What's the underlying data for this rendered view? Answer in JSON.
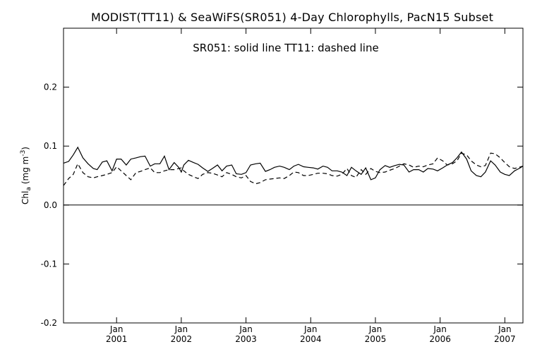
{
  "chart_data": {
    "type": "line",
    "title": "MODIST(TT11) & SeaWiFS(SR051) 4-Day Chlorophylls, PacN15 Subset",
    "legend_text": "SR051: solid line    TT11: dashed line",
    "ylabel": "Chl",
    "ylabel_sub": "a",
    "ylabel_units": "(mg m",
    "ylabel_sup": "-3",
    "ylabel_close": ")",
    "ylim": [
      -0.2,
      0.3
    ],
    "xlim": [
      2000.18,
      2007.28
    ],
    "y_ticks": [
      {
        "value": -0.2,
        "label": "-0.2"
      },
      {
        "value": -0.1,
        "label": "-0.1"
      },
      {
        "value": 0.0,
        "label": "0.0"
      },
      {
        "value": 0.1,
        "label": "0.1"
      },
      {
        "value": 0.2,
        "label": "0.2"
      }
    ],
    "x_ticks": [
      {
        "value": 2001.0,
        "month": "Jan",
        "year": "2001"
      },
      {
        "value": 2002.0,
        "month": "Jan",
        "year": "2002"
      },
      {
        "value": 2003.0,
        "month": "Jan",
        "year": "2003"
      },
      {
        "value": 2004.0,
        "month": "Jan",
        "year": "2004"
      },
      {
        "value": 2005.0,
        "month": "Jan",
        "year": "2005"
      },
      {
        "value": 2006.0,
        "month": "Jan",
        "year": "2006"
      },
      {
        "value": 2007.0,
        "month": "Jan",
        "year": "2007"
      }
    ],
    "zero_line": true,
    "grid": false,
    "series": [
      {
        "style": "solid",
        "color": "#000000",
        "x": [
          2000.18,
          2000.26,
          2000.33,
          2000.4,
          2000.48,
          2000.56,
          2000.64,
          2000.7,
          2000.78,
          2000.85,
          2000.93,
          2001.0,
          2001.07,
          2001.15,
          2001.22,
          2001.3,
          2001.37,
          2001.44,
          2001.52,
          2001.59,
          2001.67,
          2001.74,
          2001.81,
          2001.89,
          2001.96,
          2002.0,
          2002.04,
          2002.11,
          2002.19,
          2002.26,
          2002.33,
          2002.41,
          2002.48,
          2002.56,
          2002.63,
          2002.7,
          2002.78,
          2002.85,
          2002.93,
          2003.0,
          2003.07,
          2003.15,
          2003.22,
          2003.3,
          2003.37,
          2003.44,
          2003.52,
          2003.59,
          2003.67,
          2003.74,
          2003.81,
          2003.89,
          2003.96,
          2004.04,
          2004.11,
          2004.19,
          2004.26,
          2004.33,
          2004.41,
          2004.48,
          2004.56,
          2004.63,
          2004.7,
          2004.78,
          2004.85,
          2004.93,
          2005.0,
          2005.07,
          2005.15,
          2005.22,
          2005.3,
          2005.37,
          2005.44,
          2005.52,
          2005.59,
          2005.67,
          2005.74,
          2005.81,
          2005.89,
          2005.96,
          2006.04,
          2006.11,
          2006.19,
          2006.26,
          2006.33,
          2006.41,
          2006.48,
          2006.56,
          2006.63,
          2006.7,
          2006.78,
          2006.85,
          2006.93,
          2007.0,
          2007.07,
          2007.15,
          2007.22,
          2007.28
        ],
        "values": [
          0.071,
          0.074,
          0.085,
          0.098,
          0.08,
          0.07,
          0.062,
          0.06,
          0.073,
          0.075,
          0.058,
          0.078,
          0.078,
          0.068,
          0.078,
          0.08,
          0.082,
          0.083,
          0.066,
          0.07,
          0.07,
          0.083,
          0.06,
          0.072,
          0.064,
          0.056,
          0.068,
          0.076,
          0.072,
          0.069,
          0.063,
          0.057,
          0.062,
          0.068,
          0.058,
          0.066,
          0.068,
          0.053,
          0.052,
          0.055,
          0.068,
          0.07,
          0.071,
          0.057,
          0.06,
          0.064,
          0.066,
          0.064,
          0.06,
          0.066,
          0.069,
          0.065,
          0.064,
          0.063,
          0.061,
          0.066,
          0.064,
          0.058,
          0.058,
          0.056,
          0.05,
          0.064,
          0.058,
          0.052,
          0.063,
          0.043,
          0.046,
          0.06,
          0.067,
          0.064,
          0.067,
          0.069,
          0.068,
          0.056,
          0.06,
          0.06,
          0.056,
          0.062,
          0.061,
          0.058,
          0.063,
          0.068,
          0.072,
          0.08,
          0.09,
          0.078,
          0.058,
          0.05,
          0.048,
          0.056,
          0.075,
          0.068,
          0.056,
          0.052,
          0.05,
          0.058,
          0.062,
          0.066
        ]
      },
      {
        "style": "dashed",
        "color": "#000000",
        "x": [
          2000.18,
          2000.26,
          2000.33,
          2000.4,
          2000.48,
          2000.56,
          2000.64,
          2000.7,
          2000.78,
          2000.85,
          2000.93,
          2001.0,
          2001.07,
          2001.15,
          2001.22,
          2001.3,
          2001.37,
          2001.44,
          2001.52,
          2001.59,
          2001.67,
          2001.74,
          2001.81,
          2001.89,
          2001.96,
          2002.0,
          2002.04,
          2002.11,
          2002.19,
          2002.26,
          2002.33,
          2002.41,
          2002.48,
          2002.56,
          2002.63,
          2002.7,
          2002.78,
          2002.85,
          2002.93,
          2003.0,
          2003.07,
          2003.15,
          2003.22,
          2003.3,
          2003.37,
          2003.44,
          2003.52,
          2003.59,
          2003.67,
          2003.74,
          2003.81,
          2003.89,
          2003.96,
          2004.04,
          2004.11,
          2004.19,
          2004.26,
          2004.33,
          2004.41,
          2004.48,
          2004.56,
          2004.63,
          2004.7,
          2004.78,
          2004.85,
          2004.93,
          2005.0,
          2005.07,
          2005.15,
          2005.22,
          2005.3,
          2005.37,
          2005.44,
          2005.52,
          2005.59,
          2005.67,
          2005.74,
          2005.81,
          2005.89,
          2005.96,
          2006.04,
          2006.11,
          2006.19,
          2006.26,
          2006.33,
          2006.41,
          2006.48,
          2006.56,
          2006.63,
          2006.7,
          2006.78,
          2006.85,
          2006.93,
          2007.0,
          2007.07,
          2007.15,
          2007.22,
          2007.28
        ],
        "values": [
          0.033,
          0.045,
          0.052,
          0.07,
          0.055,
          0.048,
          0.046,
          0.048,
          0.05,
          0.052,
          0.055,
          0.065,
          0.058,
          0.05,
          0.043,
          0.055,
          0.057,
          0.06,
          0.063,
          0.055,
          0.055,
          0.058,
          0.06,
          0.06,
          0.062,
          0.063,
          0.058,
          0.052,
          0.048,
          0.045,
          0.052,
          0.055,
          0.054,
          0.051,
          0.048,
          0.055,
          0.052,
          0.048,
          0.046,
          0.05,
          0.04,
          0.036,
          0.038,
          0.043,
          0.044,
          0.045,
          0.046,
          0.045,
          0.05,
          0.056,
          0.055,
          0.05,
          0.05,
          0.052,
          0.054,
          0.054,
          0.053,
          0.05,
          0.049,
          0.052,
          0.062,
          0.05,
          0.047,
          0.06,
          0.052,
          0.062,
          0.057,
          0.055,
          0.056,
          0.059,
          0.062,
          0.066,
          0.07,
          0.068,
          0.064,
          0.066,
          0.065,
          0.068,
          0.07,
          0.08,
          0.075,
          0.068,
          0.07,
          0.075,
          0.088,
          0.085,
          0.075,
          0.068,
          0.065,
          0.067,
          0.088,
          0.087,
          0.08,
          0.072,
          0.065,
          0.062,
          0.064,
          0.066
        ]
      }
    ]
  }
}
